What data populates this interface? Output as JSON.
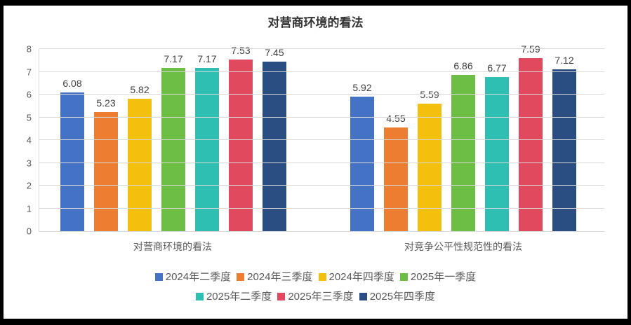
{
  "title": "对营商环境的看法",
  "chart_data": {
    "type": "bar",
    "title": "对营商环境的看法",
    "categories": [
      "对营商环境的看法",
      "对竞争公平性规范性的看法"
    ],
    "series": [
      {
        "name": "2024年二季度",
        "color": "#4472c4",
        "values": [
          6.08,
          5.92
        ]
      },
      {
        "name": "2024年三季度",
        "color": "#ed7d31",
        "values": [
          5.23,
          4.55
        ]
      },
      {
        "name": "2024年四季度",
        "color": "#f2c00d",
        "values": [
          5.82,
          5.59
        ]
      },
      {
        "name": "2025年一季度",
        "color": "#6dbe45",
        "values": [
          7.17,
          6.86
        ]
      },
      {
        "name": "2025年二季度",
        "color": "#2ebfb2",
        "values": [
          7.17,
          6.77
        ]
      },
      {
        "name": "2025年三季度",
        "color": "#e0495e",
        "values": [
          7.53,
          7.59
        ]
      },
      {
        "name": "2025年四季度",
        "color": "#2a4d82",
        "values": [
          7.45,
          7.12
        ]
      }
    ],
    "ylim": [
      0,
      8
    ],
    "yticks": [
      0,
      1,
      2,
      3,
      4,
      5,
      6,
      7,
      8
    ],
    "grid": true,
    "data_labels": true,
    "legend_position": "bottom",
    "legend_wrap": 4
  },
  "style": {
    "frame_border_color": "#000000",
    "background": "#ffffff",
    "gridline_color": "#d9d9d9",
    "axis_text_color": "#595959",
    "data_label_color": "#404040",
    "title_color": "#333333"
  }
}
